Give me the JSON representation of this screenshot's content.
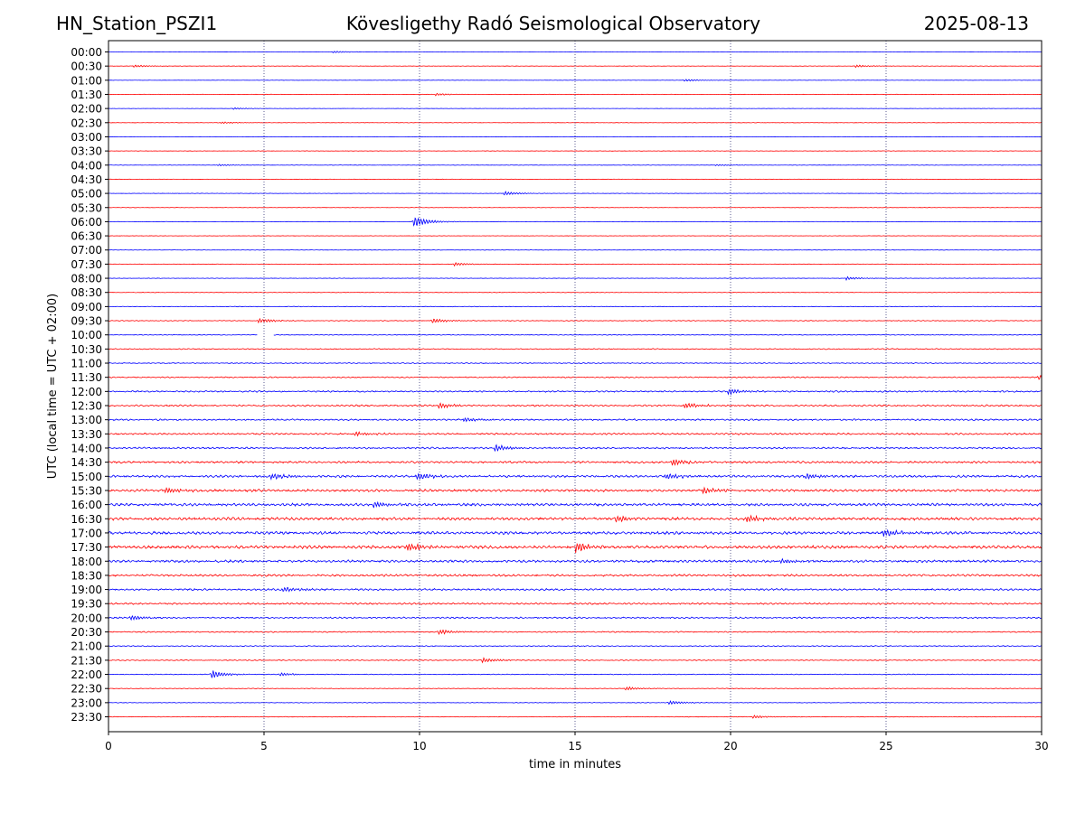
{
  "header": {
    "station": "HN_Station_PSZI1",
    "title": "Kövesligethy Radó Seismological Observatory",
    "date": "2025-08-13"
  },
  "chart_data": {
    "type": "line",
    "title": "Kövesligethy Radó Seismological Observatory",
    "xlabel": "time in minutes",
    "ylabel": "UTC (local time = UTC + 02:00)",
    "xlim": [
      0,
      30
    ],
    "xticks": [
      0,
      5,
      10,
      15,
      20,
      25,
      30
    ],
    "xgrid": "vertical dotted lines at each x tick",
    "rows": [
      "00:00",
      "00:30",
      "01:00",
      "01:30",
      "02:00",
      "02:30",
      "03:00",
      "03:30",
      "04:00",
      "04:30",
      "05:00",
      "05:30",
      "06:00",
      "06:30",
      "07:00",
      "07:30",
      "08:00",
      "08:30",
      "09:00",
      "09:30",
      "10:00",
      "10:30",
      "11:00",
      "11:30",
      "12:00",
      "12:30",
      "13:00",
      "13:30",
      "14:00",
      "14:30",
      "15:00",
      "15:30",
      "16:00",
      "16:30",
      "17:00",
      "17:30",
      "18:00",
      "18:30",
      "19:00",
      "19:30",
      "20:00",
      "20:30",
      "21:00",
      "21:30",
      "22:00",
      "22:30",
      "23:00",
      "23:30"
    ],
    "trace_colors": [
      "#0000ff",
      "#ff0000"
    ],
    "trace_color_rule": "rows alternate blue (:00) and red (:30)",
    "gaps": [
      {
        "row": "10:00",
        "from_min": 4.8,
        "to_min": 5.3
      }
    ],
    "activity": [
      0.15,
      0.2,
      0.15,
      0.2,
      0.15,
      0.2,
      0.15,
      0.2,
      0.2,
      0.2,
      0.2,
      0.2,
      0.2,
      0.2,
      0.2,
      0.2,
      0.25,
      0.25,
      0.3,
      0.4,
      0.4,
      0.5,
      0.5,
      0.6,
      0.8,
      0.9,
      0.85,
      0.9,
      0.9,
      1.1,
      1.2,
      1.3,
      1.4,
      1.5,
      1.5,
      1.6,
      1.3,
      1.1,
      1.0,
      0.9,
      0.8,
      0.6,
      0.5,
      0.5,
      0.4,
      0.35,
      0.3,
      0.3
    ],
    "events": [
      {
        "row": "00:00",
        "min": 7.2,
        "amp": 1.2
      },
      {
        "row": "00:30",
        "min": 0.8,
        "amp": 1.4
      },
      {
        "row": "00:30",
        "min": 24.0,
        "amp": 1.6
      },
      {
        "row": "01:00",
        "min": 18.5,
        "amp": 1.6
      },
      {
        "row": "01:30",
        "min": 10.5,
        "amp": 1.4
      },
      {
        "row": "02:00",
        "min": 4.0,
        "amp": 1.0
      },
      {
        "row": "02:30",
        "min": 3.6,
        "amp": 1.2
      },
      {
        "row": "04:00",
        "min": 3.5,
        "amp": 1.2
      },
      {
        "row": "04:00",
        "min": 19.5,
        "amp": 1.0
      },
      {
        "row": "05:00",
        "min": 12.7,
        "amp": 2.5
      },
      {
        "row": "06:00",
        "min": 9.8,
        "amp": 7.0
      },
      {
        "row": "07:30",
        "min": 11.1,
        "amp": 2.0
      },
      {
        "row": "08:00",
        "min": 23.7,
        "amp": 2.0
      },
      {
        "row": "09:30",
        "min": 4.8,
        "amp": 3.0
      },
      {
        "row": "09:30",
        "min": 10.4,
        "amp": 3.0
      },
      {
        "row": "11:30",
        "min": 29.9,
        "amp": 3.0
      },
      {
        "row": "12:00",
        "min": 19.9,
        "amp": 3.5
      },
      {
        "row": "12:30",
        "min": 10.6,
        "amp": 3.5
      },
      {
        "row": "12:30",
        "min": 18.5,
        "amp": 3.5
      },
      {
        "row": "13:00",
        "min": 11.4,
        "amp": 2.5
      },
      {
        "row": "13:30",
        "min": 7.9,
        "amp": 2.5
      },
      {
        "row": "14:00",
        "min": 12.4,
        "amp": 4.5
      },
      {
        "row": "14:30",
        "min": 18.1,
        "amp": 4.0
      },
      {
        "row": "15:00",
        "min": 5.2,
        "amp": 4.0
      },
      {
        "row": "15:00",
        "min": 9.9,
        "amp": 4.5
      },
      {
        "row": "15:00",
        "min": 17.9,
        "amp": 4.0
      },
      {
        "row": "15:00",
        "min": 22.4,
        "amp": 3.5
      },
      {
        "row": "15:30",
        "min": 1.8,
        "amp": 4.0
      },
      {
        "row": "15:30",
        "min": 19.1,
        "amp": 4.0
      },
      {
        "row": "16:00",
        "min": 8.5,
        "amp": 4.0
      },
      {
        "row": "16:30",
        "min": 16.3,
        "amp": 4.0
      },
      {
        "row": "16:30",
        "min": 20.5,
        "amp": 4.5
      },
      {
        "row": "17:00",
        "min": 24.9,
        "amp": 4.5
      },
      {
        "row": "17:30",
        "min": 15.0,
        "amp": 6.0
      },
      {
        "row": "17:30",
        "min": 9.6,
        "amp": 5.0
      },
      {
        "row": "18:00",
        "min": 21.6,
        "amp": 3.0
      },
      {
        "row": "19:00",
        "min": 5.6,
        "amp": 3.0
      },
      {
        "row": "20:00",
        "min": 0.7,
        "amp": 3.0
      },
      {
        "row": "20:30",
        "min": 10.6,
        "amp": 3.0
      },
      {
        "row": "21:30",
        "min": 12.0,
        "amp": 3.0
      },
      {
        "row": "22:00",
        "min": 3.3,
        "amp": 5.0
      },
      {
        "row": "22:00",
        "min": 5.5,
        "amp": 2.0
      },
      {
        "row": "22:30",
        "min": 16.6,
        "amp": 2.0
      },
      {
        "row": "23:00",
        "min": 18.0,
        "amp": 2.5
      },
      {
        "row": "23:30",
        "min": 20.7,
        "amp": 2.0
      }
    ]
  }
}
